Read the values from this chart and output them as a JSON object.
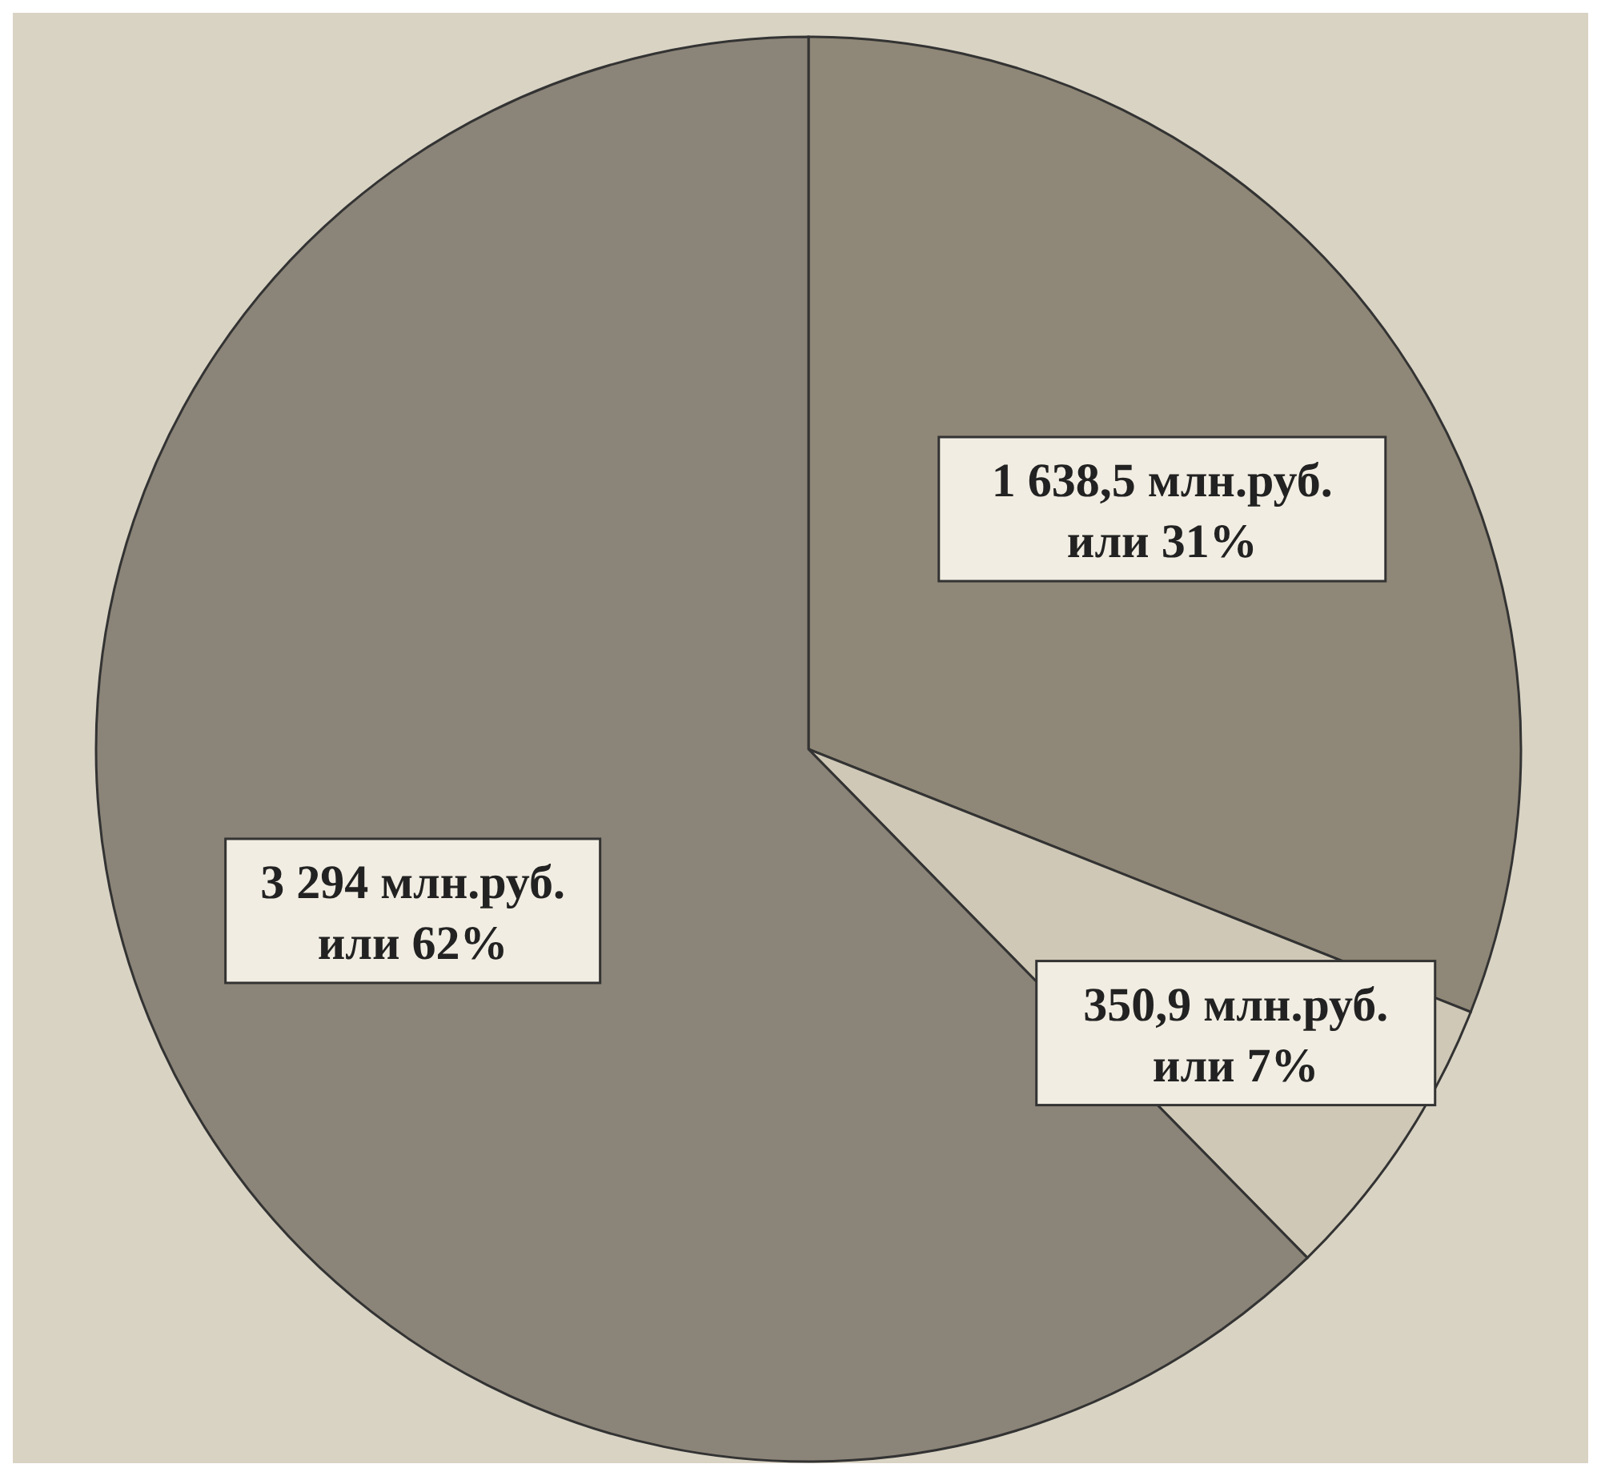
{
  "chart_data": {
    "type": "pie",
    "categories": [
      null,
      null,
      null
    ],
    "values": [
      1638.5,
      350.9,
      3294
    ],
    "colors": [
      "#8f8777",
      "#cfc8b6",
      "#8b8478"
    ],
    "value_labels": [
      "1 638,5  млн.руб.\nили  31%",
      "350,9  млн.руб.\nили  7%",
      "3 294 млн.руб.\nили 62%"
    ]
  }
}
